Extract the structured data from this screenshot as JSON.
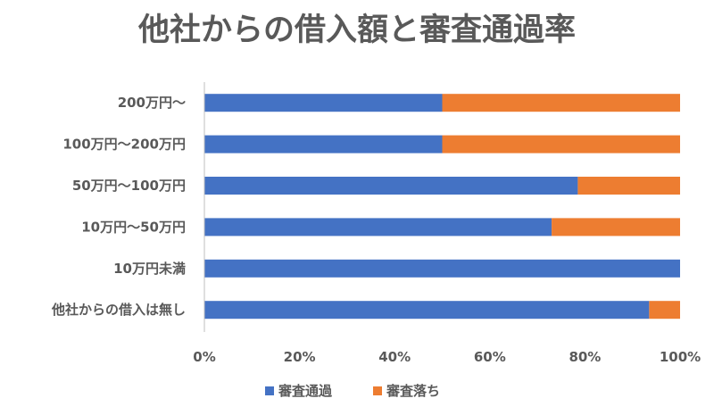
{
  "chart_data": {
    "type": "bar",
    "orientation": "horizontal",
    "stacked": "percent",
    "title": "他社からの借入額と審査通過率",
    "categories": [
      "200万円～",
      "100万円～200万円",
      "50万円～100万円",
      "10万円～50万円",
      "10万円未満",
      "他社からの借入は無し"
    ],
    "series": [
      {
        "name": "審査通過",
        "color": "#4472C4",
        "values": [
          50,
          50,
          78.5,
          73,
          100,
          93.5
        ]
      },
      {
        "name": "審査落ち",
        "color": "#ED7D31",
        "values": [
          50,
          50,
          21.5,
          27,
          0,
          6.5
        ]
      }
    ],
    "xlim": [
      0,
      100
    ],
    "xticks": [
      "0%",
      "20%",
      "40%",
      "60%",
      "80%",
      "100%"
    ],
    "grid": false,
    "legend_position": "bottom"
  }
}
